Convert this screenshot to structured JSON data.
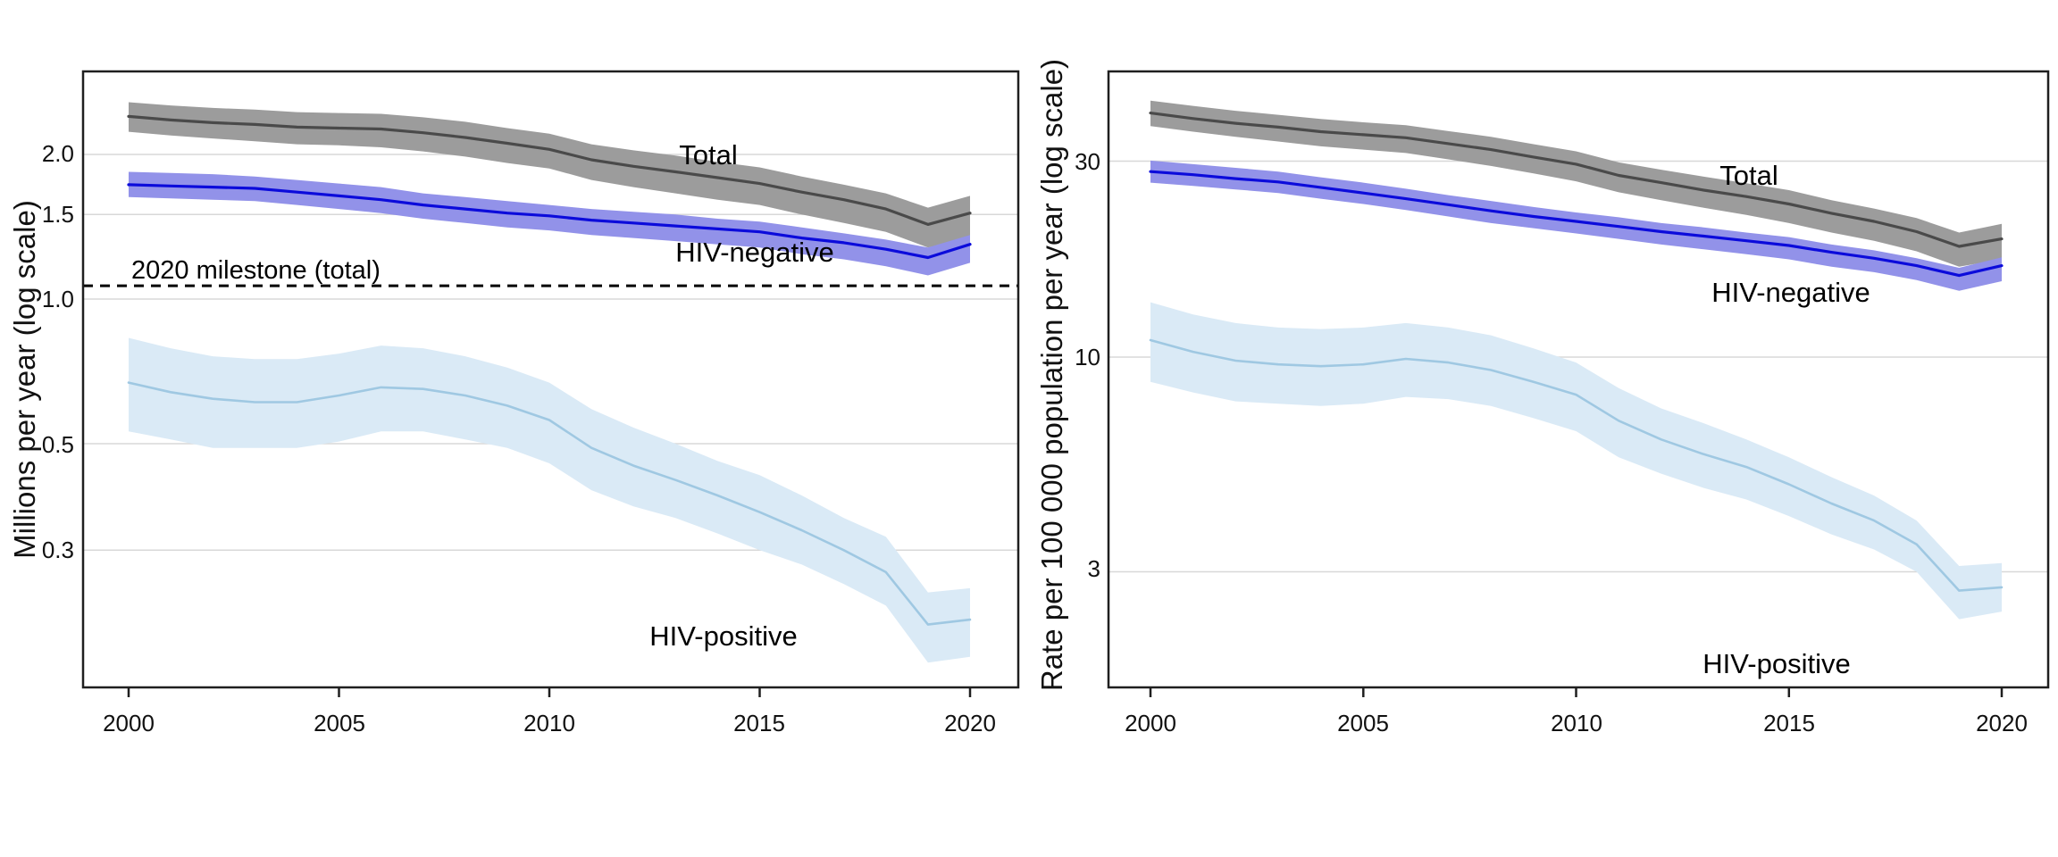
{
  "style": {
    "background": "#ffffff",
    "grid_color": "#d8d8d8",
    "border_color": "#1f1f1f",
    "reference_line_color": "#000000",
    "text_color": "#000000"
  },
  "chart_data": [
    {
      "type": "line",
      "panel": "left",
      "title": "",
      "xlabel": "",
      "ylabel": "Millions per year (log scale)",
      "yscale": "log",
      "ylim": [
        0.16,
        2.9
      ],
      "xlim": [
        1998.9,
        2021.1
      ],
      "grid": "horizontal",
      "legend_position": "none",
      "x": [
        2000,
        2001,
        2002,
        2003,
        2004,
        2005,
        2006,
        2007,
        2008,
        2009,
        2010,
        2011,
        2012,
        2013,
        2014,
        2015,
        2016,
        2017,
        2018,
        2019,
        2020
      ],
      "xticks": [
        2000,
        2005,
        2010,
        2015,
        2020
      ],
      "xtick_labels": [
        "2000",
        "2005",
        "2010",
        "2015",
        "2020"
      ],
      "yticks": [
        2.0,
        1.5,
        1.0,
        0.5,
        0.3
      ],
      "ytick_labels": [
        "2.0",
        "1.5",
        "1.0",
        "0.5",
        "0.3"
      ],
      "reference_line": {
        "label": "2020 milestone (total)",
        "value": 1.066,
        "style": "dashed"
      },
      "series": [
        {
          "id": "total",
          "label": "Total",
          "line_color": "#4a4a4a",
          "band_color": "#9c9c9c",
          "line_width": 3.2,
          "values": [
            2.4,
            2.36,
            2.33,
            2.31,
            2.28,
            2.27,
            2.26,
            2.22,
            2.17,
            2.11,
            2.05,
            1.95,
            1.89,
            1.84,
            1.79,
            1.74,
            1.67,
            1.61,
            1.54,
            1.43,
            1.51
          ],
          "lower": [
            2.23,
            2.19,
            2.16,
            2.13,
            2.1,
            2.09,
            2.07,
            2.03,
            1.98,
            1.92,
            1.87,
            1.77,
            1.71,
            1.66,
            1.61,
            1.57,
            1.5,
            1.44,
            1.38,
            1.28,
            1.34
          ],
          "upper": [
            2.57,
            2.53,
            2.5,
            2.48,
            2.45,
            2.44,
            2.43,
            2.39,
            2.34,
            2.27,
            2.21,
            2.1,
            2.04,
            1.99,
            1.93,
            1.88,
            1.8,
            1.73,
            1.66,
            1.55,
            1.64
          ]
        },
        {
          "id": "hiv-negative",
          "label": "HIV-negative",
          "line_color": "#0b0bdb",
          "band_color": "#9292e9",
          "line_width": 3.2,
          "values": [
            1.73,
            1.72,
            1.71,
            1.7,
            1.67,
            1.64,
            1.61,
            1.57,
            1.54,
            1.51,
            1.49,
            1.46,
            1.44,
            1.42,
            1.4,
            1.38,
            1.34,
            1.31,
            1.27,
            1.22,
            1.3
          ],
          "lower": [
            1.63,
            1.62,
            1.61,
            1.6,
            1.57,
            1.54,
            1.51,
            1.47,
            1.44,
            1.41,
            1.39,
            1.36,
            1.34,
            1.32,
            1.3,
            1.28,
            1.24,
            1.21,
            1.17,
            1.12,
            1.19
          ],
          "upper": [
            1.84,
            1.83,
            1.82,
            1.8,
            1.77,
            1.74,
            1.71,
            1.66,
            1.63,
            1.6,
            1.57,
            1.54,
            1.52,
            1.5,
            1.47,
            1.45,
            1.41,
            1.37,
            1.33,
            1.28,
            1.36
          ]
        },
        {
          "id": "hiv-positive",
          "label": "HIV-positive",
          "line_color": "#9fc8e2",
          "band_color": "#daeaf6",
          "line_width": 2.6,
          "values": [
            0.67,
            0.64,
            0.62,
            0.61,
            0.61,
            0.63,
            0.655,
            0.65,
            0.63,
            0.6,
            0.56,
            0.49,
            0.45,
            0.42,
            0.39,
            0.36,
            0.33,
            0.3,
            0.27,
            0.21,
            0.215
          ],
          "lower": [
            0.53,
            0.51,
            0.49,
            0.49,
            0.49,
            0.505,
            0.53,
            0.53,
            0.51,
            0.49,
            0.455,
            0.4,
            0.37,
            0.35,
            0.325,
            0.3,
            0.28,
            0.255,
            0.23,
            0.175,
            0.18
          ],
          "upper": [
            0.83,
            0.79,
            0.76,
            0.75,
            0.75,
            0.77,
            0.8,
            0.79,
            0.76,
            0.72,
            0.67,
            0.59,
            0.54,
            0.5,
            0.46,
            0.43,
            0.39,
            0.35,
            0.32,
            0.245,
            0.25
          ]
        }
      ]
    },
    {
      "type": "line",
      "panel": "right",
      "title": "",
      "xlabel": "",
      "ylabel": "Rate per 100 000 population per year (log scale)",
      "yscale": "log",
      "ylim": [
        1.6,
        49
      ],
      "xlim": [
        1999.0,
        2021.1
      ],
      "grid": "horizontal",
      "legend_position": "none",
      "x": [
        2000,
        2001,
        2002,
        2003,
        2004,
        2005,
        2006,
        2007,
        2008,
        2009,
        2010,
        2011,
        2012,
        2013,
        2014,
        2015,
        2016,
        2017,
        2018,
        2019,
        2020
      ],
      "xticks": [
        2000,
        2005,
        2010,
        2015,
        2020
      ],
      "xtick_labels": [
        "2000",
        "2005",
        "2010",
        "2015",
        "2020"
      ],
      "yticks": [
        30,
        10,
        3
      ],
      "ytick_labels": [
        "30",
        "10",
        "3"
      ],
      "reference_line": null,
      "series": [
        {
          "id": "total",
          "label": "Total",
          "line_color": "#4a4a4a",
          "band_color": "#9c9c9c",
          "line_width": 3.2,
          "values": [
            39.3,
            38.1,
            37.1,
            36.3,
            35.4,
            34.8,
            34.2,
            33.1,
            32.0,
            30.7,
            29.5,
            27.7,
            26.6,
            25.5,
            24.6,
            23.6,
            22.4,
            21.4,
            20.2,
            18.6,
            19.4
          ],
          "lower": [
            36.5,
            35.4,
            34.4,
            33.5,
            32.6,
            32.0,
            31.4,
            30.3,
            29.2,
            28.0,
            26.8,
            25.2,
            24.1,
            23.1,
            22.2,
            21.2,
            20.1,
            19.2,
            18.1,
            16.6,
            17.3
          ],
          "upper": [
            42.1,
            40.9,
            39.8,
            38.9,
            38.0,
            37.3,
            36.7,
            35.5,
            34.4,
            33.0,
            31.7,
            29.8,
            28.6,
            27.5,
            26.5,
            25.5,
            24.1,
            23.0,
            21.8,
            20.1,
            21.1
          ]
        },
        {
          "id": "hiv-negative",
          "label": "HIV-negative",
          "line_color": "#0b0bdb",
          "band_color": "#9292e9",
          "line_width": 3.2,
          "values": [
            28.3,
            27.8,
            27.2,
            26.7,
            25.9,
            25.1,
            24.3,
            23.5,
            22.7,
            22.0,
            21.4,
            20.8,
            20.2,
            19.7,
            19.2,
            18.7,
            18.0,
            17.4,
            16.7,
            15.8,
            16.7
          ],
          "lower": [
            26.6,
            26.1,
            25.6,
            25.1,
            24.3,
            23.6,
            22.8,
            22.0,
            21.2,
            20.6,
            20.0,
            19.4,
            18.8,
            18.3,
            17.8,
            17.3,
            16.6,
            16.1,
            15.4,
            14.5,
            15.3
          ],
          "upper": [
            30.1,
            29.5,
            28.9,
            28.3,
            27.4,
            26.6,
            25.7,
            24.8,
            24.0,
            23.2,
            22.5,
            21.9,
            21.2,
            20.7,
            20.1,
            19.6,
            18.8,
            18.2,
            17.4,
            16.5,
            17.5
          ]
        },
        {
          "id": "hiv-positive",
          "label": "HIV-positive",
          "line_color": "#9fc8e2",
          "band_color": "#daeaf6",
          "line_width": 2.6,
          "values": [
            11.0,
            10.3,
            9.8,
            9.6,
            9.5,
            9.6,
            9.9,
            9.7,
            9.3,
            8.7,
            8.1,
            7.0,
            6.3,
            5.8,
            5.4,
            4.9,
            4.4,
            4.0,
            3.5,
            2.7,
            2.75
          ],
          "lower": [
            8.7,
            8.2,
            7.8,
            7.7,
            7.6,
            7.7,
            8.0,
            7.9,
            7.6,
            7.1,
            6.6,
            5.7,
            5.2,
            4.8,
            4.5,
            4.1,
            3.7,
            3.4,
            3.0,
            2.3,
            2.4
          ],
          "upper": [
            13.6,
            12.7,
            12.1,
            11.8,
            11.7,
            11.8,
            12.1,
            11.8,
            11.3,
            10.5,
            9.7,
            8.4,
            7.5,
            6.9,
            6.3,
            5.7,
            5.1,
            4.6,
            4.0,
            3.1,
            3.15
          ]
        }
      ]
    }
  ]
}
